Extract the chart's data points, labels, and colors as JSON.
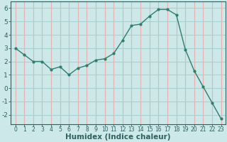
{
  "x": [
    0,
    1,
    2,
    3,
    4,
    5,
    6,
    7,
    8,
    9,
    10,
    11,
    12,
    13,
    14,
    15,
    16,
    17,
    18,
    19,
    20,
    21,
    22,
    23
  ],
  "y": [
    3.0,
    2.5,
    2.0,
    2.0,
    1.4,
    1.6,
    1.0,
    1.5,
    1.7,
    2.1,
    2.2,
    2.6,
    3.6,
    4.7,
    4.8,
    5.4,
    5.9,
    5.9,
    5.5,
    2.9,
    1.3,
    0.1,
    -1.1,
    -2.3
  ],
  "xlabel": "Humidex (Indice chaleur)",
  "bg_color": "#cce8e8",
  "grid_color_h": "#a8d0d0",
  "grid_color_v": "#e8b0b0",
  "line_color": "#2e7d6e",
  "tick_color": "#2e6060",
  "xlim": [
    -0.5,
    23.5
  ],
  "ylim": [
    -2.7,
    6.5
  ],
  "yticks": [
    -2,
    -1,
    0,
    1,
    2,
    3,
    4,
    5,
    6
  ],
  "xticks": [
    0,
    1,
    2,
    3,
    4,
    5,
    6,
    7,
    8,
    9,
    10,
    11,
    12,
    13,
    14,
    15,
    16,
    17,
    18,
    19,
    20,
    21,
    22,
    23
  ],
  "xlabel_fontsize": 7.5,
  "ytick_fontsize": 6.5,
  "xtick_fontsize": 5.5
}
